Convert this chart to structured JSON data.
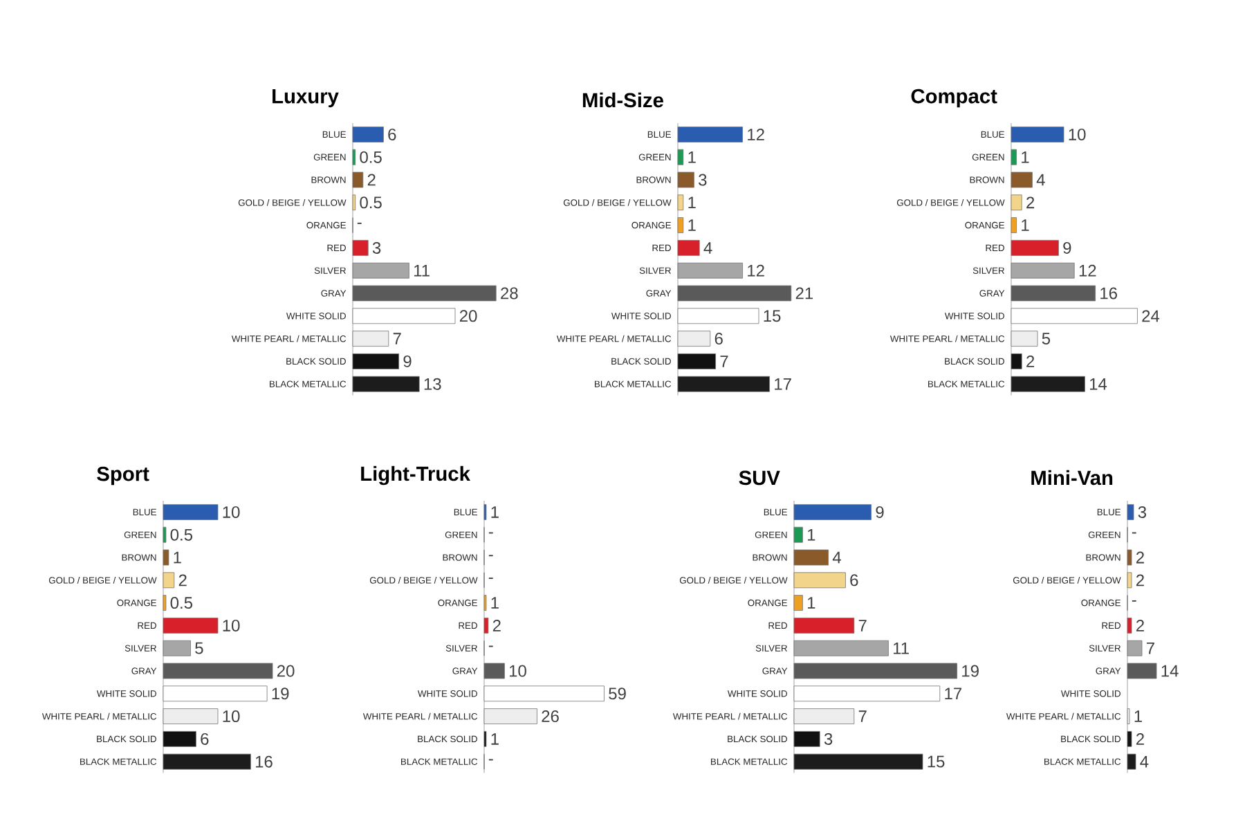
{
  "chart_data": [
    {
      "type": "bar",
      "orientation": "horizontal",
      "title": "Luxury",
      "categories": [
        "BLUE",
        "GREEN",
        "BROWN",
        "GOLD / BEIGE / YELLOW",
        "ORANGE",
        "RED",
        "SILVER",
        "GRAY",
        "WHITE SOLID",
        "WHITE PEARL / METALLIC",
        "BLACK SOLID",
        "BLACK METALLIC"
      ],
      "values": [
        6,
        0.5,
        2,
        0.5,
        0,
        3,
        11,
        28,
        20,
        7,
        9,
        13
      ],
      "value_labels": [
        "6",
        "0.5",
        "2",
        "0.5",
        "-",
        "3",
        "11",
        "28",
        "20",
        "7",
        "9",
        "13"
      ],
      "colors": [
        "#2a5cb0",
        "#1a9a55",
        "#8b5a2b",
        "#f2d48a",
        "#f0a020",
        "#d8202a",
        "#a6a6a6",
        "#5a5a5a",
        "#ffffff",
        "#eeeeee",
        "#111111",
        "#1c1c1c"
      ]
    },
    {
      "type": "bar",
      "orientation": "horizontal",
      "title": "Mid-Size",
      "categories": [
        "BLUE",
        "GREEN",
        "BROWN",
        "GOLD / BEIGE / YELLOW",
        "ORANGE",
        "RED",
        "SILVER",
        "GRAY",
        "WHITE SOLID",
        "WHITE PEARL / METALLIC",
        "BLACK SOLID",
        "BLACK METALLIC"
      ],
      "values": [
        12,
        1,
        3,
        1,
        1,
        4,
        12,
        21,
        15,
        6,
        7,
        17
      ],
      "value_labels": [
        "12",
        "1",
        "3",
        "1",
        "1",
        "4",
        "12",
        "21",
        "15",
        "6",
        "7",
        "17"
      ],
      "colors": [
        "#2a5cb0",
        "#1a9a55",
        "#8b5a2b",
        "#f2d48a",
        "#f0a020",
        "#d8202a",
        "#a6a6a6",
        "#5a5a5a",
        "#ffffff",
        "#eeeeee",
        "#111111",
        "#1c1c1c"
      ]
    },
    {
      "type": "bar",
      "orientation": "horizontal",
      "title": "Compact",
      "categories": [
        "BLUE",
        "GREEN",
        "BROWN",
        "GOLD / BEIGE / YELLOW",
        "ORANGE",
        "RED",
        "SILVER",
        "GRAY",
        "WHITE SOLID",
        "WHITE PEARL / METALLIC",
        "BLACK SOLID",
        "BLACK METALLIC"
      ],
      "values": [
        10,
        1,
        4,
        2,
        1,
        9,
        12,
        16,
        24,
        5,
        2,
        14
      ],
      "value_labels": [
        "10",
        "1",
        "4",
        "2",
        "1",
        "9",
        "12",
        "16",
        "24",
        "5",
        "2",
        "14"
      ],
      "colors": [
        "#2a5cb0",
        "#1a9a55",
        "#8b5a2b",
        "#f2d48a",
        "#f0a020",
        "#d8202a",
        "#a6a6a6",
        "#5a5a5a",
        "#ffffff",
        "#eeeeee",
        "#111111",
        "#1c1c1c"
      ]
    },
    {
      "type": "bar",
      "orientation": "horizontal",
      "title": "Sport",
      "categories": [
        "BLUE",
        "GREEN",
        "BROWN",
        "GOLD / BEIGE / YELLOW",
        "ORANGE",
        "RED",
        "SILVER",
        "GRAY",
        "WHITE SOLID",
        "WHITE PEARL / METALLIC",
        "BLACK SOLID",
        "BLACK METALLIC"
      ],
      "values": [
        10,
        0.5,
        1,
        2,
        0.5,
        10,
        5,
        20,
        19,
        10,
        6,
        16
      ],
      "value_labels": [
        "10",
        "0.5",
        "1",
        "2",
        "0.5",
        "10",
        "5",
        "20",
        "19",
        "10",
        "6",
        "16"
      ],
      "colors": [
        "#2a5cb0",
        "#1a9a55",
        "#8b5a2b",
        "#f2d48a",
        "#f0a020",
        "#d8202a",
        "#a6a6a6",
        "#5a5a5a",
        "#ffffff",
        "#eeeeee",
        "#111111",
        "#1c1c1c"
      ]
    },
    {
      "type": "bar",
      "orientation": "horizontal",
      "title": "Light-Truck",
      "categories": [
        "BLUE",
        "GREEN",
        "BROWN",
        "GOLD / BEIGE / YELLOW",
        "ORANGE",
        "RED",
        "SILVER",
        "GRAY",
        "WHITE SOLID",
        "WHITE PEARL / METALLIC",
        "BLACK SOLID",
        "BLACK METALLIC"
      ],
      "values": [
        1,
        0,
        0,
        0,
        1,
        2,
        0,
        10,
        59,
        26,
        1,
        0
      ],
      "value_labels": [
        "1",
        "-",
        "-",
        "-",
        "1",
        "2",
        "-",
        "10",
        "59",
        "26",
        "1",
        "-"
      ],
      "colors": [
        "#2a5cb0",
        "#1a9a55",
        "#8b5a2b",
        "#f2d48a",
        "#f0a020",
        "#d8202a",
        "#a6a6a6",
        "#5a5a5a",
        "#ffffff",
        "#eeeeee",
        "#111111",
        "#1c1c1c"
      ]
    },
    {
      "type": "bar",
      "orientation": "horizontal",
      "title": "SUV",
      "categories": [
        "BLUE",
        "GREEN",
        "BROWN",
        "GOLD / BEIGE / YELLOW",
        "ORANGE",
        "RED",
        "SILVER",
        "GRAY",
        "WHITE SOLID",
        "WHITE PEARL / METALLIC",
        "BLACK SOLID",
        "BLACK METALLIC"
      ],
      "values": [
        9,
        1,
        4,
        6,
        1,
        7,
        11,
        19,
        17,
        7,
        3,
        15
      ],
      "value_labels": [
        "9",
        "1",
        "4",
        "6",
        "1",
        "7",
        "11",
        "19",
        "17",
        "7",
        "3",
        "15"
      ],
      "colors": [
        "#2a5cb0",
        "#1a9a55",
        "#8b5a2b",
        "#f2d48a",
        "#f0a020",
        "#d8202a",
        "#a6a6a6",
        "#5a5a5a",
        "#ffffff",
        "#eeeeee",
        "#111111",
        "#1c1c1c"
      ]
    },
    {
      "type": "bar",
      "orientation": "horizontal",
      "title": "Mini-Van",
      "categories": [
        "BLUE",
        "GREEN",
        "BROWN",
        "GOLD / BEIGE / YELLOW",
        "ORANGE",
        "RED",
        "SILVER",
        "GRAY",
        "WHITE SOLID",
        "WHITE PEARL / METALLIC",
        "BLACK SOLID",
        "BLACK METALLIC"
      ],
      "values": [
        3,
        0,
        2,
        2,
        0,
        2,
        7,
        14,
        null,
        1,
        2,
        4
      ],
      "value_labels": [
        "3",
        "-",
        "2",
        "2",
        "-",
        "2",
        "7",
        "14",
        null,
        "1",
        "2",
        "4"
      ],
      "colors": [
        "#2a5cb0",
        "#1a9a55",
        "#8b5a2b",
        "#f2d48a",
        "#f0a020",
        "#d8202a",
        "#a6a6a6",
        "#5a5a5a",
        "#ffffff",
        "#eeeeee",
        "#111111",
        "#1c1c1c"
      ]
    }
  ]
}
